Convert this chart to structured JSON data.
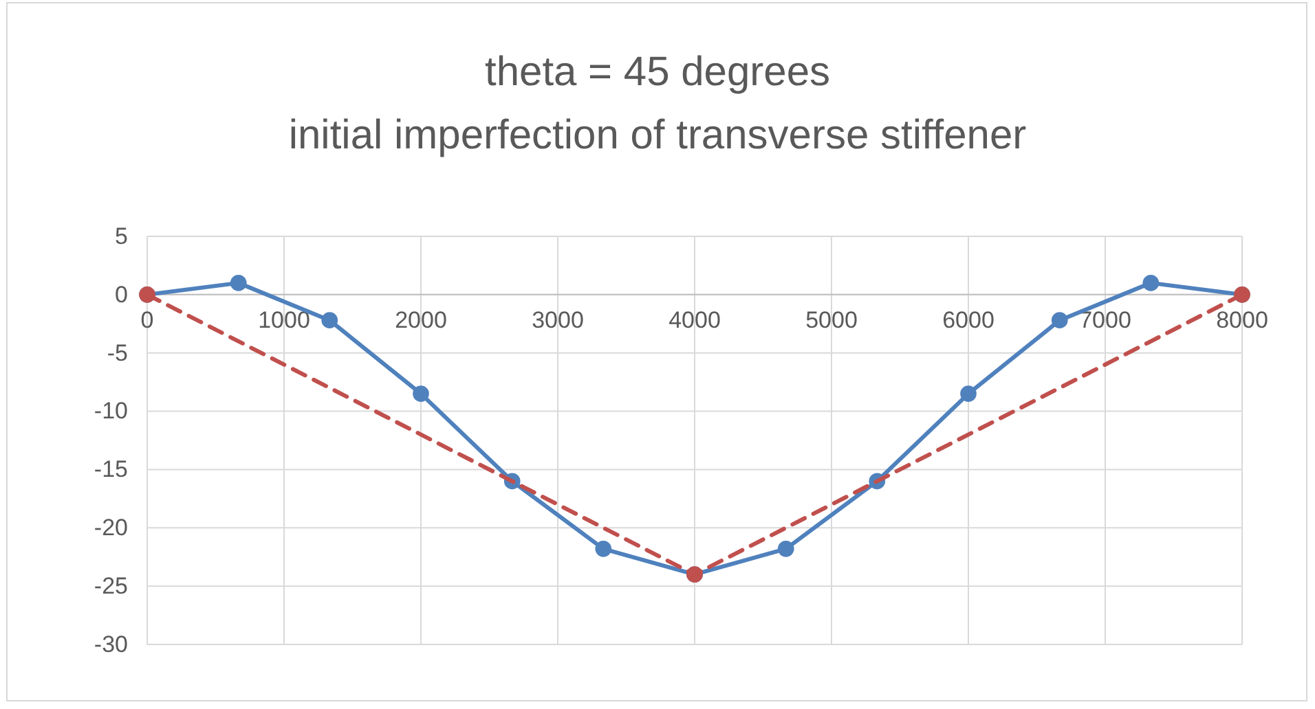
{
  "chart_data": {
    "type": "line",
    "title": "theta = 45 degrees",
    "subtitle": "initial imperfection of transverse stiffener",
    "xlim": [
      0,
      8000
    ],
    "xticks": [
      0,
      1000,
      2000,
      3000,
      4000,
      5000,
      6000,
      7000,
      8000
    ],
    "ylim": [
      -30,
      5
    ],
    "yticks": [
      -30,
      -25,
      -20,
      -15,
      -10,
      -5,
      0,
      5
    ],
    "grid": true,
    "marker": "circle",
    "series": [
      {
        "color": "#4f81bd",
        "line_style": "solid",
        "x": [
          0,
          667,
          1333,
          2000,
          2667,
          3333,
          4000,
          4667,
          5333,
          6000,
          6667,
          7333,
          8000
        ],
        "values": [
          0,
          1,
          -2.2,
          -8.5,
          -16,
          -21.8,
          -24,
          -21.8,
          -16,
          -8.5,
          -2.2,
          1,
          0
        ]
      },
      {
        "color": "#c0504d",
        "line_style": "dashed",
        "x": [
          0,
          4000,
          8000
        ],
        "values": [
          0,
          -24,
          0
        ]
      }
    ]
  }
}
